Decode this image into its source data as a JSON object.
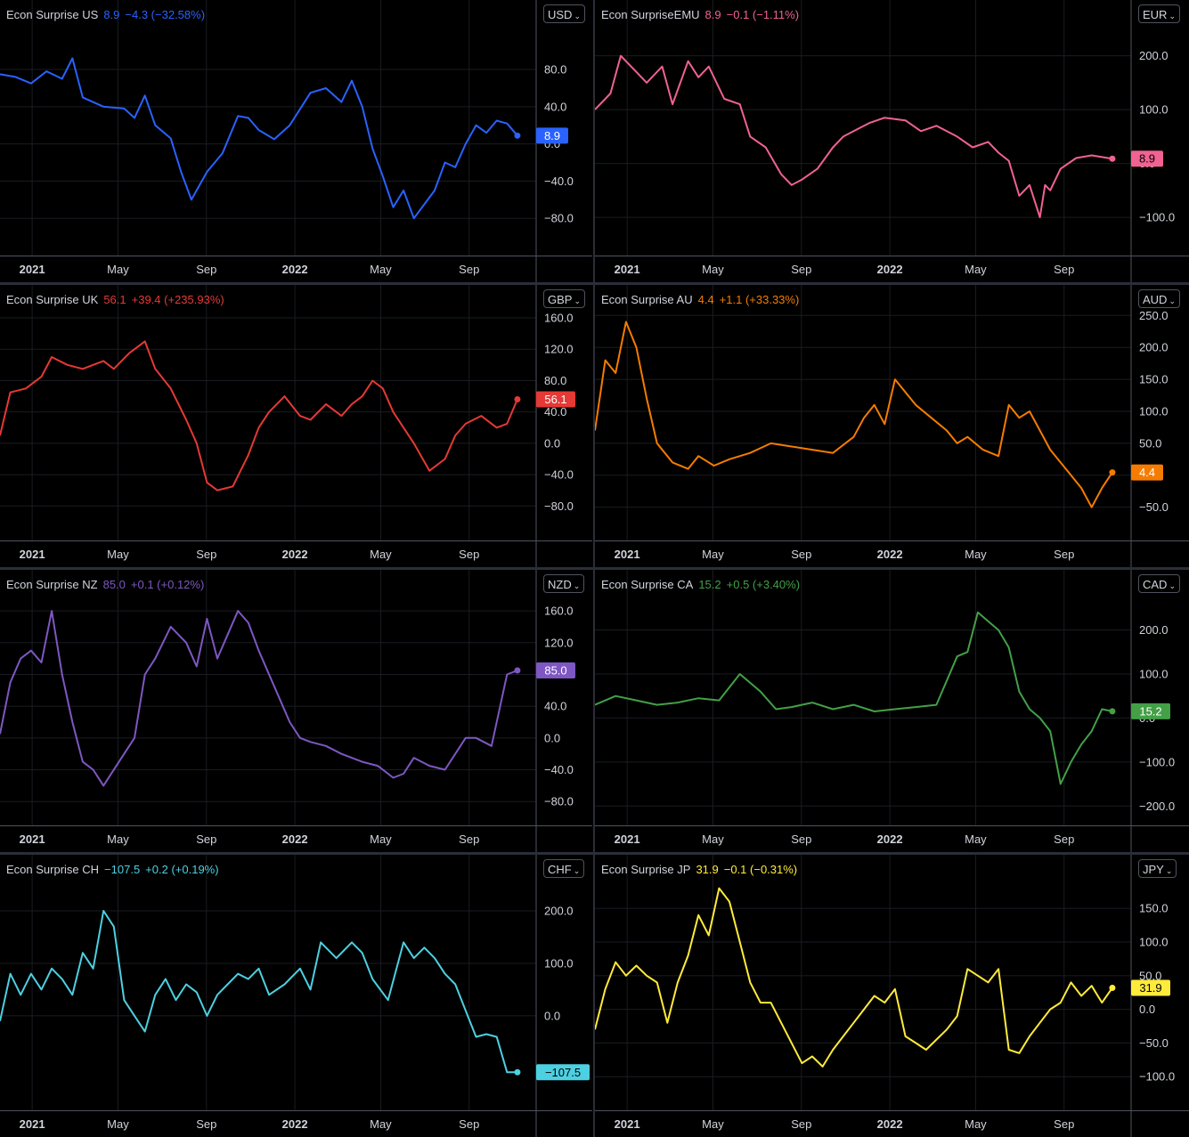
{
  "x_ticks": [
    "2021",
    "May",
    "Sep",
    "2022",
    "May",
    "Sep"
  ],
  "chart_data": [
    {
      "type": "line",
      "title": "Econ Surprise US",
      "last": "8.9",
      "change": "−4.3 (−32.58%)",
      "currency": "USD",
      "color": "#2962ff",
      "label_text": "#ffffff",
      "y_ticks": [
        {
          "v": 80,
          "t": "80.0"
        },
        {
          "v": 40,
          "t": "40.0"
        },
        {
          "v": 0,
          "t": "0.0"
        },
        {
          "v": -40,
          "t": "−40.0"
        },
        {
          "v": -80,
          "t": "−80.0"
        }
      ],
      "ylim": [
        -120,
        126
      ],
      "last_value": 8.9,
      "x": [
        0,
        0.03,
        0.06,
        0.09,
        0.12,
        0.14,
        0.16,
        0.2,
        0.24,
        0.26,
        0.28,
        0.3,
        0.33,
        0.35,
        0.37,
        0.4,
        0.43,
        0.46,
        0.48,
        0.5,
        0.53,
        0.56,
        0.6,
        0.63,
        0.66,
        0.68,
        0.7,
        0.72,
        0.74,
        0.76,
        0.78,
        0.8,
        0.82,
        0.84,
        0.86,
        0.88,
        0.9,
        0.92,
        0.94,
        0.96,
        0.98,
        1.0
      ],
      "values": [
        75,
        72,
        65,
        78,
        70,
        92,
        50,
        40,
        38,
        28,
        52,
        20,
        6,
        -30,
        -60,
        -30,
        -10,
        30,
        28,
        15,
        5,
        20,
        55,
        60,
        45,
        68,
        40,
        -5,
        -35,
        -68,
        -50,
        -80,
        -65,
        -50,
        -20,
        -25,
        0,
        20,
        12,
        25,
        22,
        8.9
      ]
    },
    {
      "type": "line",
      "title": "Econ SurpriseEMU",
      "last": "8.9",
      "change": "−0.1 (−1.11%)",
      "currency": "EUR",
      "color": "#f06292",
      "label_text": "#000000",
      "y_ticks": [
        {
          "v": 200,
          "t": "200.0"
        },
        {
          "v": 100,
          "t": "100.0"
        },
        {
          "v": 0,
          "t": "0.0"
        },
        {
          "v": -100,
          "t": "−100.0"
        }
      ],
      "ylim": [
        -171,
        254
      ],
      "last_value": 8.9,
      "x": [
        0,
        0.03,
        0.05,
        0.08,
        0.1,
        0.13,
        0.15,
        0.18,
        0.2,
        0.22,
        0.25,
        0.28,
        0.3,
        0.33,
        0.36,
        0.38,
        0.4,
        0.43,
        0.46,
        0.48,
        0.5,
        0.53,
        0.56,
        0.6,
        0.63,
        0.66,
        0.7,
        0.73,
        0.76,
        0.78,
        0.8,
        0.82,
        0.84,
        0.86,
        0.87,
        0.88,
        0.9,
        0.93,
        0.96,
        1.0
      ],
      "values": [
        100,
        130,
        200,
        170,
        150,
        180,
        110,
        190,
        160,
        180,
        120,
        110,
        50,
        30,
        -20,
        -40,
        -30,
        -10,
        30,
        50,
        60,
        75,
        85,
        80,
        60,
        70,
        50,
        30,
        40,
        20,
        5,
        -60,
        -40,
        -100,
        -40,
        -50,
        -10,
        10,
        15,
        8.9
      ]
    },
    {
      "type": "line",
      "title": "Econ Surprise UK",
      "last": "56.1",
      "change": "+39.4 (+235.93%)",
      "currency": "GBP",
      "color": "#e53935",
      "label_text": "#ffffff",
      "y_ticks": [
        {
          "v": 160,
          "t": "160.0"
        },
        {
          "v": 120,
          "t": "120.0"
        },
        {
          "v": 80,
          "t": "80.0"
        },
        {
          "v": 40,
          "t": "40.0"
        },
        {
          "v": 0,
          "t": "0.0"
        },
        {
          "v": -40,
          "t": "−40.0"
        },
        {
          "v": -80,
          "t": "−80.0"
        }
      ],
      "ylim": [
        -124,
        168
      ],
      "last_value": 56.1,
      "x": [
        0,
        0.02,
        0.05,
        0.08,
        0.1,
        0.13,
        0.16,
        0.18,
        0.2,
        0.22,
        0.25,
        0.28,
        0.3,
        0.33,
        0.36,
        0.38,
        0.4,
        0.42,
        0.45,
        0.48,
        0.5,
        0.52,
        0.55,
        0.58,
        0.6,
        0.63,
        0.66,
        0.68,
        0.7,
        0.72,
        0.74,
        0.76,
        0.78,
        0.8,
        0.83,
        0.86,
        0.88,
        0.9,
        0.93,
        0.96,
        0.98,
        1.0
      ],
      "values": [
        10,
        65,
        70,
        85,
        110,
        100,
        95,
        100,
        105,
        95,
        115,
        130,
        95,
        70,
        30,
        0,
        -50,
        -60,
        -55,
        -15,
        20,
        40,
        60,
        35,
        30,
        50,
        35,
        50,
        60,
        80,
        70,
        40,
        20,
        0,
        -35,
        -20,
        10,
        25,
        35,
        20,
        25,
        56.1
      ]
    },
    {
      "type": "line",
      "title": "Econ Surprise AU",
      "last": "4.4",
      "change": "+1.1 (+33.33%)",
      "currency": "AUD",
      "color": "#f57c00",
      "label_text": "#ffffff",
      "y_ticks": [
        {
          "v": 250,
          "t": "250.0"
        },
        {
          "v": 200,
          "t": "200.0"
        },
        {
          "v": 150,
          "t": "150.0"
        },
        {
          "v": 100,
          "t": "100.0"
        },
        {
          "v": 50,
          "t": "50.0"
        },
        {
          "v": 0,
          "t": "0.0"
        },
        {
          "v": -50,
          "t": "−50.0"
        }
      ],
      "ylim": [
        -102,
        256
      ],
      "last_value": 4.4,
      "x": [
        0,
        0.02,
        0.04,
        0.06,
        0.08,
        0.1,
        0.12,
        0.15,
        0.18,
        0.2,
        0.23,
        0.26,
        0.3,
        0.34,
        0.38,
        0.42,
        0.46,
        0.5,
        0.52,
        0.54,
        0.56,
        0.58,
        0.6,
        0.62,
        0.65,
        0.68,
        0.7,
        0.72,
        0.75,
        0.78,
        0.8,
        0.82,
        0.84,
        0.86,
        0.88,
        0.9,
        0.92,
        0.94,
        0.96,
        0.98,
        1.0
      ],
      "values": [
        70,
        180,
        160,
        240,
        200,
        120,
        50,
        20,
        10,
        30,
        15,
        25,
        35,
        50,
        45,
        40,
        35,
        60,
        90,
        110,
        80,
        150,
        130,
        110,
        90,
        70,
        50,
        60,
        40,
        30,
        110,
        90,
        100,
        70,
        40,
        20,
        0,
        -20,
        -50,
        -20,
        4.4
      ]
    },
    {
      "type": "line",
      "title": "Econ Surprise NZ",
      "last": "85.0",
      "change": "+0.1 (+0.12%)",
      "currency": "NZD",
      "color": "#7e57c2",
      "label_text": "#ffffff",
      "y_ticks": [
        {
          "v": 160,
          "t": "160.0"
        },
        {
          "v": 120,
          "t": "120.0"
        },
        {
          "v": 80,
          "t": "80.0"
        },
        {
          "v": 40,
          "t": "40.0"
        },
        {
          "v": 0,
          "t": "0.0"
        },
        {
          "v": -40,
          "t": "−40.0"
        },
        {
          "v": -80,
          "t": "−80.0"
        }
      ],
      "ylim": [
        -110,
        178
      ],
      "last_value": 85.0,
      "x": [
        0,
        0.02,
        0.04,
        0.06,
        0.08,
        0.1,
        0.12,
        0.14,
        0.16,
        0.18,
        0.2,
        0.23,
        0.26,
        0.28,
        0.3,
        0.33,
        0.36,
        0.38,
        0.4,
        0.42,
        0.44,
        0.46,
        0.48,
        0.5,
        0.52,
        0.54,
        0.56,
        0.58,
        0.6,
        0.63,
        0.66,
        0.7,
        0.73,
        0.76,
        0.78,
        0.8,
        0.83,
        0.86,
        0.88,
        0.9,
        0.92,
        0.95,
        0.98,
        1.0
      ],
      "values": [
        5,
        70,
        100,
        110,
        95,
        160,
        80,
        20,
        -30,
        -40,
        -60,
        -30,
        0,
        80,
        100,
        140,
        120,
        90,
        150,
        100,
        130,
        160,
        145,
        110,
        80,
        50,
        20,
        0,
        -5,
        -10,
        -20,
        -30,
        -35,
        -50,
        -45,
        -25,
        -35,
        -40,
        -20,
        0,
        0,
        -10,
        80,
        85
      ]
    },
    {
      "type": "line",
      "title": "Econ Surprise CA",
      "last": "15.2",
      "change": "+0.5 (+3.40%)",
      "currency": "CAD",
      "color": "#43a047",
      "label_text": "#ffffff",
      "y_ticks": [
        {
          "v": 200,
          "t": "200.0"
        },
        {
          "v": 100,
          "t": "100.0"
        },
        {
          "v": 0,
          "t": "0.0"
        },
        {
          "v": -100,
          "t": "−100.0"
        },
        {
          "v": -200,
          "t": "−200.0"
        }
      ],
      "ylim": [
        -244,
        276
      ],
      "last_value": 15.2,
      "x": [
        0,
        0.04,
        0.08,
        0.12,
        0.16,
        0.2,
        0.24,
        0.28,
        0.3,
        0.32,
        0.35,
        0.38,
        0.42,
        0.46,
        0.5,
        0.54,
        0.58,
        0.62,
        0.66,
        0.7,
        0.72,
        0.74,
        0.76,
        0.78,
        0.8,
        0.82,
        0.84,
        0.86,
        0.88,
        0.9,
        0.92,
        0.94,
        0.96,
        0.98,
        1.0
      ],
      "values": [
        30,
        50,
        40,
        30,
        35,
        45,
        40,
        100,
        80,
        60,
        20,
        25,
        35,
        20,
        30,
        15,
        20,
        25,
        30,
        140,
        150,
        240,
        220,
        200,
        160,
        60,
        20,
        0,
        -30,
        -150,
        -100,
        -60,
        -30,
        20,
        15.2
      ]
    },
    {
      "type": "line",
      "title": "Econ Surprise CH",
      "last": "−107.5",
      "change": "+0.2 (+0.19%)",
      "currency": "CHF",
      "color": "#4dd0e1",
      "label_text": "#000000",
      "y_ticks": [
        {
          "v": 200,
          "t": "200.0"
        },
        {
          "v": 100,
          "t": "100.0"
        },
        {
          "v": 0,
          "t": "0.0"
        }
      ],
      "ylim": [
        -180,
        256
      ],
      "last_value": -107.5,
      "x": [
        0,
        0.02,
        0.04,
        0.06,
        0.08,
        0.1,
        0.12,
        0.14,
        0.16,
        0.18,
        0.2,
        0.22,
        0.24,
        0.26,
        0.28,
        0.3,
        0.32,
        0.34,
        0.36,
        0.38,
        0.4,
        0.42,
        0.44,
        0.46,
        0.48,
        0.5,
        0.52,
        0.55,
        0.58,
        0.6,
        0.62,
        0.65,
        0.68,
        0.7,
        0.72,
        0.75,
        0.78,
        0.8,
        0.82,
        0.84,
        0.86,
        0.88,
        0.9,
        0.92,
        0.94,
        0.96,
        0.98,
        1.0
      ],
      "values": [
        -10,
        80,
        40,
        80,
        50,
        90,
        70,
        40,
        120,
        90,
        200,
        170,
        30,
        0,
        -30,
        40,
        70,
        30,
        60,
        45,
        0,
        40,
        60,
        80,
        70,
        90,
        40,
        60,
        90,
        50,
        140,
        110,
        140,
        120,
        70,
        30,
        140,
        110,
        130,
        110,
        80,
        60,
        10,
        -40,
        -35,
        -40,
        -107.5,
        -107.5
      ]
    },
    {
      "type": "line",
      "title": "Econ Surprise JP",
      "last": "31.9",
      "change": "−0.1 (−0.31%)",
      "currency": "JPY",
      "color": "#ffeb3b",
      "label_text": "#000000",
      "y_ticks": [
        {
          "v": 150,
          "t": "150.0"
        },
        {
          "v": 100,
          "t": "100.0"
        },
        {
          "v": 50,
          "t": "50.0"
        },
        {
          "v": 0,
          "t": "0.0"
        },
        {
          "v": -50,
          "t": "−50.0"
        },
        {
          "v": -100,
          "t": "−100.0"
        }
      ],
      "ylim": [
        -150,
        190
      ],
      "last_value": 31.9,
      "x": [
        0,
        0.02,
        0.04,
        0.06,
        0.08,
        0.1,
        0.12,
        0.14,
        0.16,
        0.18,
        0.2,
        0.22,
        0.24,
        0.26,
        0.28,
        0.3,
        0.32,
        0.34,
        0.36,
        0.38,
        0.4,
        0.42,
        0.44,
        0.46,
        0.48,
        0.5,
        0.52,
        0.54,
        0.56,
        0.58,
        0.6,
        0.62,
        0.64,
        0.66,
        0.68,
        0.7,
        0.72,
        0.74,
        0.76,
        0.78,
        0.8,
        0.82,
        0.84,
        0.86,
        0.88,
        0.9,
        0.92,
        0.94,
        0.96,
        0.98,
        1.0
      ],
      "values": [
        -30,
        30,
        70,
        50,
        65,
        50,
        40,
        -20,
        40,
        80,
        140,
        110,
        180,
        160,
        100,
        40,
        10,
        10,
        -20,
        -50,
        -80,
        -70,
        -85,
        -60,
        -40,
        -20,
        0,
        20,
        10,
        30,
        -40,
        -50,
        -60,
        -45,
        -30,
        -10,
        60,
        50,
        40,
        60,
        -60,
        -65,
        -40,
        -20,
        0,
        10,
        40,
        20,
        35,
        10,
        31.9
      ]
    }
  ]
}
